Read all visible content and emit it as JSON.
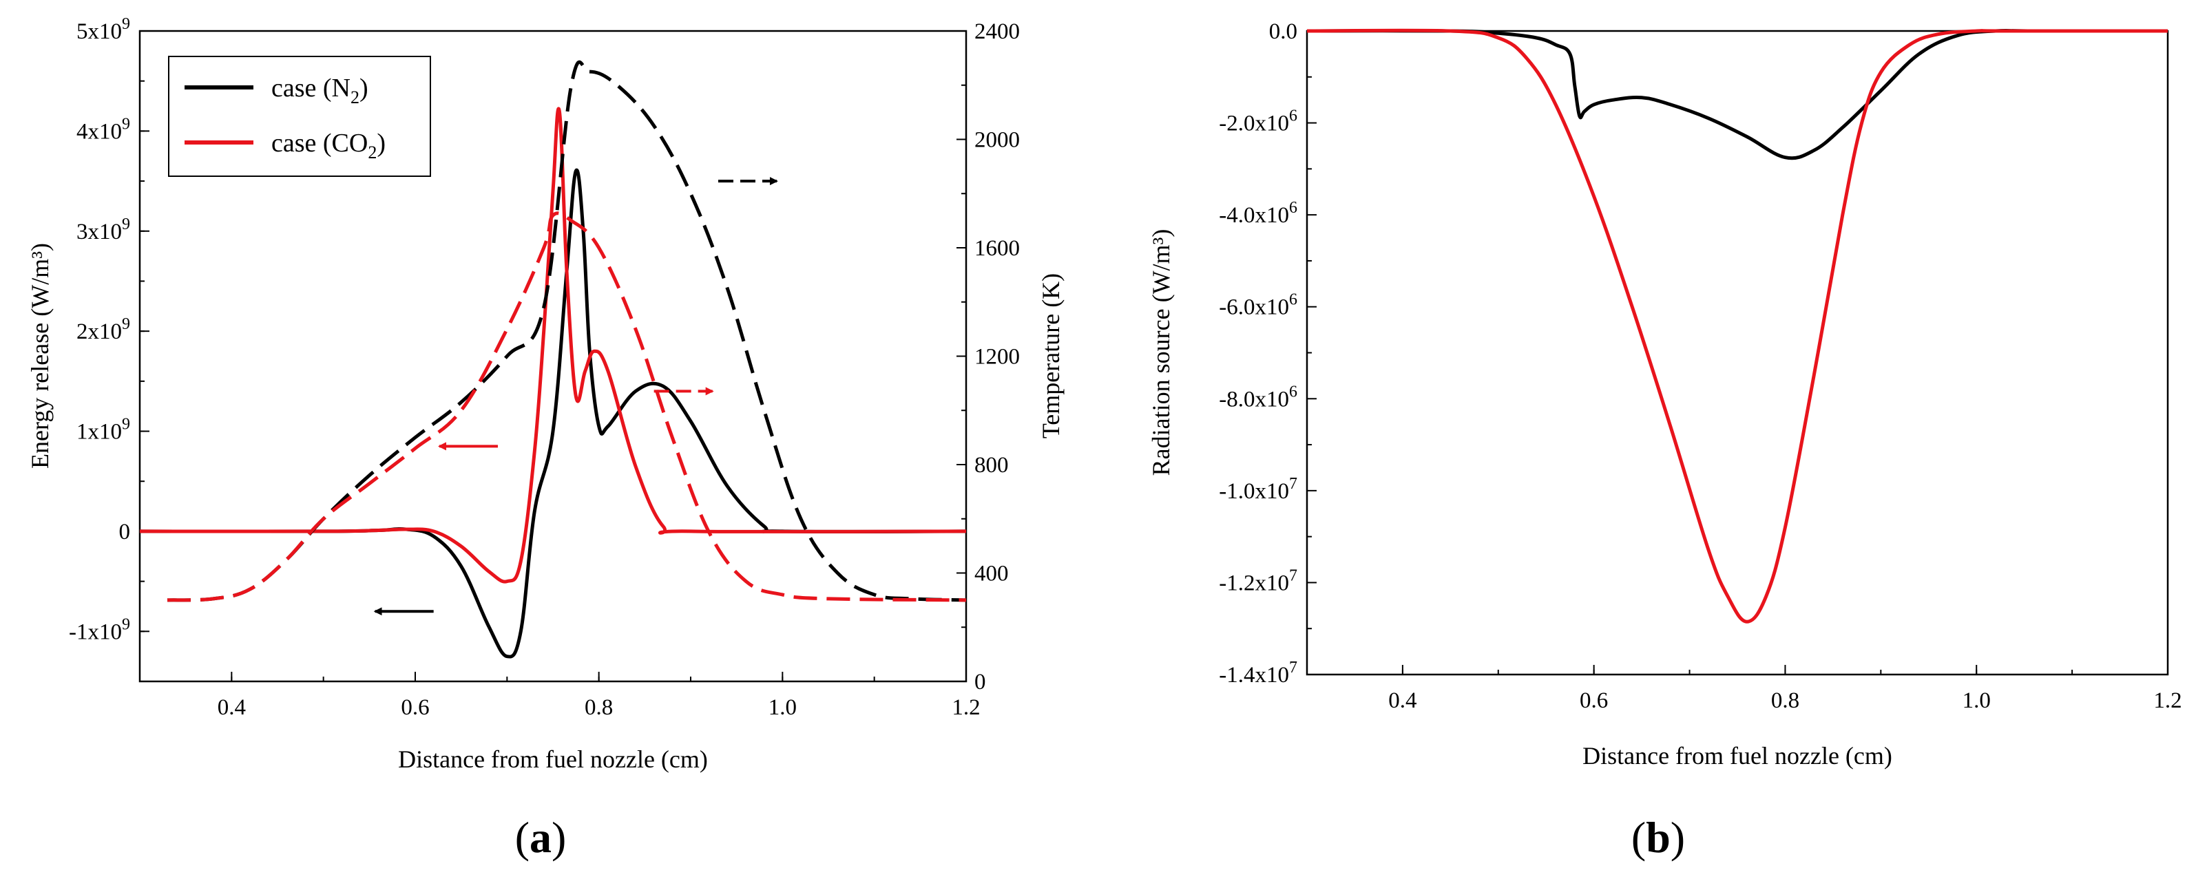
{
  "chart_data": [
    {
      "panel_label": "a",
      "type": "line",
      "xlabel": "Distance from fuel nozzle (cm)",
      "ylabel": "Energy release (W/m³)",
      "y2label": "Temperature (K)",
      "xlim": [
        0.3,
        1.2
      ],
      "ylim": [
        -1500000000.0,
        5000000000.0
      ],
      "y2lim": [
        0,
        2400
      ],
      "x_ticks": [
        0.4,
        0.6,
        0.8,
        1.0,
        1.2
      ],
      "x_tick_labels": [
        "0.4",
        "0.6",
        "0.8",
        "1.0",
        "1.2"
      ],
      "y_ticks": [
        {
          "value": -1000000000.0,
          "mantissa": "-1x10",
          "exp": "9"
        },
        {
          "value": 0,
          "mantissa": "0",
          "exp": ""
        },
        {
          "value": 1000000000.0,
          "mantissa": "1x10",
          "exp": "9"
        },
        {
          "value": 2000000000.0,
          "mantissa": "2x10",
          "exp": "9"
        },
        {
          "value": 3000000000.0,
          "mantissa": "3x10",
          "exp": "9"
        },
        {
          "value": 4000000000.0,
          "mantissa": "4x10",
          "exp": "9"
        },
        {
          "value": 5000000000.0,
          "mantissa": "5x10",
          "exp": "9"
        }
      ],
      "y2_ticks": [
        0,
        400,
        800,
        1200,
        1600,
        2000,
        2400
      ],
      "legend": {
        "position": "top-left",
        "entries": [
          {
            "label": "case (N",
            "sub": "2",
            "suffix": ")",
            "color": "#000000"
          },
          {
            "label": "case (CO",
            "sub": "2",
            "suffix": ")",
            "color": "#e8141c"
          }
        ]
      },
      "series": [
        {
          "name": "case (N2) energy release",
          "axis": "left",
          "color": "#000000",
          "dash": "solid",
          "x": [
            0.3,
            0.5,
            0.56,
            0.59,
            0.62,
            0.65,
            0.68,
            0.7,
            0.715,
            0.73,
            0.75,
            0.765,
            0.775,
            0.783,
            0.79,
            0.8,
            0.81,
            0.84,
            0.87,
            0.9,
            0.94,
            0.98,
            1.0,
            1.2
          ],
          "y": [
            0,
            0,
            10000000.0,
            20000000.0,
            -50000000.0,
            -350000000.0,
            -950000000.0,
            -1250000000.0,
            -1000000000.0,
            200000000.0,
            1000000000.0,
            2600000000.0,
            3600000000.0,
            3000000000.0,
            1800000000.0,
            1050000000.0,
            1050000000.0,
            1400000000.0,
            1450000000.0,
            1100000000.0,
            450000000.0,
            50000000.0,
            0,
            0
          ]
        },
        {
          "name": "case (CO2) energy release",
          "axis": "left",
          "color": "#e8141c",
          "dash": "solid",
          "x": [
            0.3,
            0.5,
            0.56,
            0.59,
            0.62,
            0.65,
            0.68,
            0.7,
            0.715,
            0.73,
            0.74,
            0.75,
            0.757,
            0.765,
            0.775,
            0.785,
            0.795,
            0.81,
            0.84,
            0.87,
            0.9,
            1.2
          ],
          "y": [
            0,
            0,
            10000000.0,
            20000000.0,
            0.0,
            -150000000.0,
            -400000000.0,
            -500000000.0,
            -300000000.0,
            800000000.0,
            2000000000.0,
            3400000000.0,
            4200000000.0,
            2600000000.0,
            1350000000.0,
            1600000000.0,
            1800000000.0,
            1600000000.0,
            650000000.0,
            50000000.0,
            0,
            0
          ]
        },
        {
          "name": "case (N2) temperature",
          "axis": "right",
          "color": "#000000",
          "dash": "dashed",
          "x": [
            0.33,
            0.38,
            0.42,
            0.46,
            0.5,
            0.55,
            0.6,
            0.65,
            0.7,
            0.74,
            0.77,
            0.79,
            0.82,
            0.86,
            0.9,
            0.94,
            0.98,
            1.02,
            1.06,
            1.1,
            1.14,
            1.2
          ],
          "y": [
            300,
            305,
            340,
            450,
            600,
            760,
            900,
            1030,
            1200,
            1380,
            2200,
            2250,
            2200,
            2050,
            1800,
            1450,
            1000,
            600,
            400,
            320,
            305,
            300
          ]
        },
        {
          "name": "case (CO2) temperature",
          "axis": "right",
          "color": "#e8141c",
          "dash": "dashed",
          "x": [
            0.33,
            0.38,
            0.42,
            0.46,
            0.5,
            0.55,
            0.6,
            0.65,
            0.7,
            0.74,
            0.75,
            0.77,
            0.8,
            0.84,
            0.88,
            0.92,
            0.96,
            1.0,
            1.05,
            1.2
          ],
          "y": [
            300,
            305,
            340,
            450,
            600,
            730,
            860,
            1000,
            1300,
            1600,
            1720,
            1700,
            1600,
            1300,
            900,
            550,
            370,
            320,
            305,
            300
          ]
        }
      ],
      "annotations": [
        {
          "type": "arrow",
          "direction": "left",
          "color": "#000000",
          "meaning": "black solid curve uses left axis",
          "at": [
            0.62,
            -800000000.0
          ]
        },
        {
          "type": "arrow",
          "direction": "left",
          "color": "#e8141c",
          "meaning": "red solid curve uses left axis",
          "at": [
            0.69,
            850000000.0
          ]
        },
        {
          "type": "arrow",
          "direction": "right",
          "color": "#e8141c",
          "meaning": "red dashed curve uses right axis",
          "at": [
            0.86,
            1400000000.0
          ],
          "dashed": true
        },
        {
          "type": "arrow",
          "direction": "right",
          "color": "#000000",
          "meaning": "black dashed curve uses right axis",
          "at": [
            0.93,
            3500000000.0
          ],
          "dashed": true
        }
      ]
    },
    {
      "panel_label": "b",
      "type": "line",
      "xlabel": "Distance from fuel nozzle (cm)",
      "ylabel": "Radiation source (W/m³)",
      "xlim": [
        0.3,
        1.2
      ],
      "ylim": [
        -14000000.0,
        0
      ],
      "x_ticks": [
        0.4,
        0.6,
        0.8,
        1.0,
        1.2
      ],
      "x_tick_labels": [
        "0.4",
        "0.6",
        "0.8",
        "1.0",
        "1.2"
      ],
      "y_ticks": [
        {
          "value": 0,
          "mantissa": "0.0",
          "exp": ""
        },
        {
          "value": -2000000.0,
          "mantissa": "-2.0x10",
          "exp": "6"
        },
        {
          "value": -4000000.0,
          "mantissa": "-4.0x10",
          "exp": "6"
        },
        {
          "value": -6000000.0,
          "mantissa": "-6.0x10",
          "exp": "6"
        },
        {
          "value": -8000000.0,
          "mantissa": "-8.0x10",
          "exp": "6"
        },
        {
          "value": -10000000.0,
          "mantissa": "-1.0x10",
          "exp": "7"
        },
        {
          "value": -12000000.0,
          "mantissa": "-1.2x10",
          "exp": "7"
        },
        {
          "value": -14000000.0,
          "mantissa": "-1.4x10",
          "exp": "7"
        }
      ],
      "series": [
        {
          "name": "case (N2) radiation source",
          "color": "#000000",
          "dash": "solid",
          "x": [
            0.3,
            0.45,
            0.5,
            0.54,
            0.56,
            0.575,
            0.58,
            0.585,
            0.59,
            0.6,
            0.62,
            0.65,
            0.68,
            0.72,
            0.76,
            0.8,
            0.83,
            0.86,
            0.9,
            0.94,
            0.98,
            1.02,
            1.06,
            1.2
          ],
          "y": [
            0,
            0,
            -50000.0,
            -150000.0,
            -300000.0,
            -500000.0,
            -1200000.0,
            -1850000.0,
            -1750000.0,
            -1600000.0,
            -1500000.0,
            -1450000.0,
            -1600000.0,
            -1900000.0,
            -2300000.0,
            -2750000.0,
            -2600000.0,
            -2100000.0,
            -1300000.0,
            -500000.0,
            -100000.0,
            0,
            0,
            0
          ]
        },
        {
          "name": "case (CO2) radiation source",
          "color": "#e8141c",
          "dash": "solid",
          "x": [
            0.3,
            0.45,
            0.5,
            0.53,
            0.56,
            0.6,
            0.64,
            0.68,
            0.72,
            0.74,
            0.76,
            0.78,
            0.8,
            0.83,
            0.86,
            0.88,
            0.9,
            0.93,
            0.96,
            1.0,
            1.03,
            1.2
          ],
          "y": [
            0,
            0,
            -150000.0,
            -600000.0,
            -1600000.0,
            -3600000.0,
            -6000000.0,
            -8600000.0,
            -11300000.0,
            -12300000.0,
            -12850000.0,
            -12300000.0,
            -10800000.0,
            -7500000.0,
            -4000000.0,
            -2000000.0,
            -900000.0,
            -300000.0,
            -70000.0,
            0,
            0,
            0
          ]
        }
      ]
    }
  ]
}
